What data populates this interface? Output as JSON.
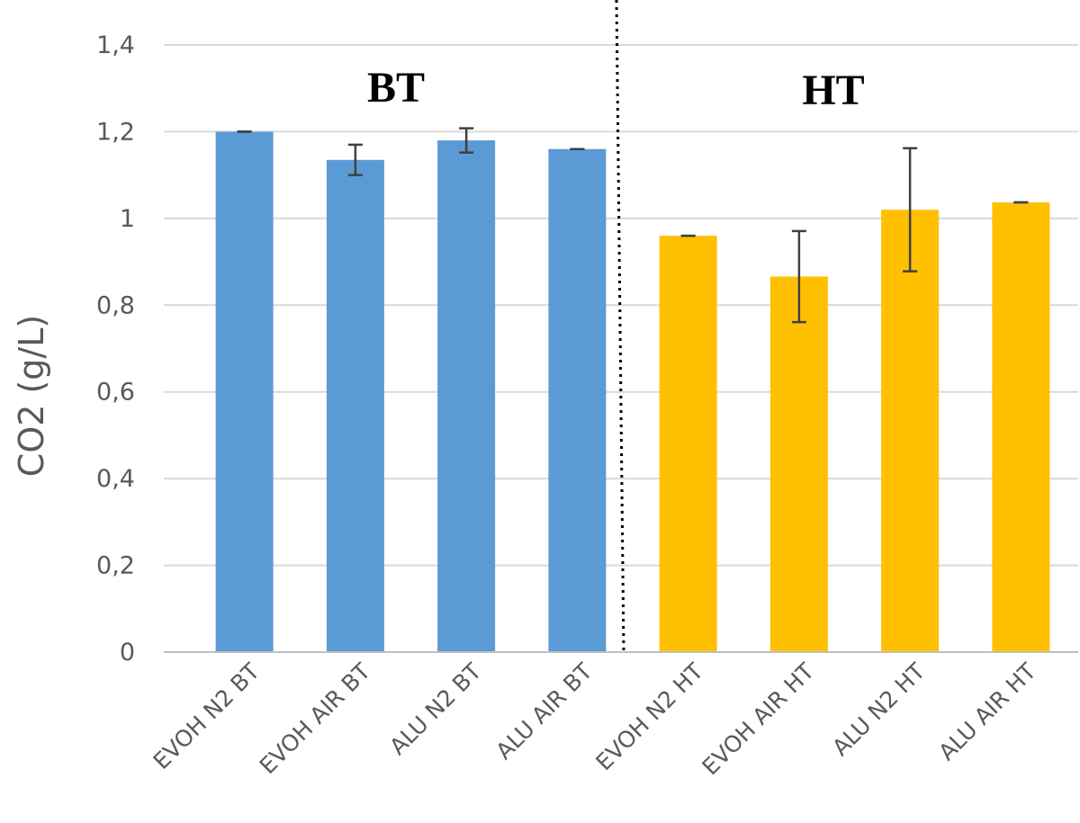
{
  "chart_data": {
    "type": "bar",
    "categories": [
      "EVOH N2 BT",
      "EVOH AIR BT",
      "ALU N2 BT",
      "ALU AIR BT",
      "EVOH N2 HT",
      "EVOH AIR HT",
      "ALU N2 HT",
      "ALU AIR HT"
    ],
    "values": [
      1.2,
      1.135,
      1.18,
      1.16,
      0.96,
      0.866,
      1.02,
      1.037
    ],
    "error": [
      0.0,
      0.035,
      0.028,
      0.0,
      0.0,
      0.105,
      0.142,
      0.0
    ],
    "groups": [
      "BT",
      "BT",
      "BT",
      "BT",
      "HT",
      "HT",
      "HT",
      "HT"
    ],
    "colors": {
      "BT": "#5B9BD5",
      "HT": "#FFC000"
    },
    "error_color": "#404040",
    "group_labels": [
      "BT",
      "HT"
    ],
    "title": "",
    "xlabel": "",
    "ylabel": "CO2 (g/L)",
    "ylim": [
      0,
      1.4
    ],
    "yticks": [
      0,
      0.2,
      0.4,
      0.6,
      0.8,
      1.0,
      1.2,
      1.4
    ],
    "ytick_labels": [
      "0",
      "0,2",
      "0,4",
      "0,6",
      "0,8",
      "1",
      "1,2",
      "1,4"
    ],
    "grid": true,
    "legend": "none",
    "separator": "dotted vertical line between ALU AIR BT and EVOH N2 HT"
  }
}
